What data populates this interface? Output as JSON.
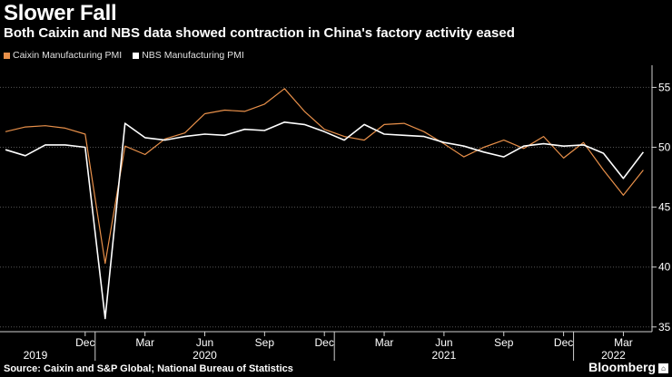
{
  "header": {
    "title": "Slower Fall",
    "subtitle": "Both Caixin and NBS data showed contraction in China's factory activity eased"
  },
  "footer": {
    "source": "Source: Caixin and S&P Global; National Bureau of Statistics",
    "brand": "Bloomberg"
  },
  "colors": {
    "background": "#000000",
    "caixin": "#e8904a",
    "nbs": "#ffffff",
    "grid": "#555555",
    "axis": "#d0d0d0"
  },
  "chart_data": {
    "type": "line",
    "title": "Slower Fall",
    "subtitle": "Both Caixin and NBS data showed contraction in China's factory activity eased",
    "xlabel": "",
    "ylabel": "",
    "ylim": [
      34,
      57
    ],
    "yticks": [
      35,
      40,
      45,
      50,
      55
    ],
    "grid": true,
    "legend_placement": "top-left",
    "x": [
      "2019-08",
      "2019-09",
      "2019-10",
      "2019-11",
      "2019-12",
      "2020-01",
      "2020-02",
      "2020-03",
      "2020-04",
      "2020-05",
      "2020-06",
      "2020-07",
      "2020-08",
      "2020-09",
      "2020-10",
      "2020-11",
      "2020-12",
      "2021-01",
      "2021-02",
      "2021-03",
      "2021-04",
      "2021-05",
      "2021-06",
      "2021-07",
      "2021-08",
      "2021-09",
      "2021-10",
      "2021-11",
      "2021-12",
      "2022-01",
      "2022-02",
      "2022-03",
      "2022-04",
      "2022-05"
    ],
    "x_tick_labels": [
      {
        "month": "Dec",
        "year": "2019"
      },
      {
        "month": "Mar",
        "year": ""
      },
      {
        "month": "Jun",
        "year": "2020"
      },
      {
        "month": "Sep",
        "year": ""
      },
      {
        "month": "Dec",
        "year": ""
      },
      {
        "month": "Mar",
        "year": ""
      },
      {
        "month": "Jun",
        "year": "2021"
      },
      {
        "month": "Sep",
        "year": ""
      },
      {
        "month": "Dec",
        "year": ""
      },
      {
        "month": "Mar",
        "year": "2022"
      }
    ],
    "x_tick_indices": [
      4,
      7,
      10,
      13,
      16,
      19,
      22,
      25,
      28,
      31
    ],
    "year_label_indices": [
      1.5,
      10.0,
      22.0,
      30.5
    ],
    "series": [
      {
        "name": "Caixin Manufacturing PMI",
        "color": "#e8904a",
        "values": [
          51.3,
          51.7,
          51.8,
          51.6,
          51.1,
          40.3,
          50.1,
          49.4,
          50.7,
          51.2,
          52.8,
          53.1,
          53.0,
          53.6,
          54.9,
          53.0,
          51.5,
          50.9,
          50.6,
          51.9,
          52.0,
          51.3,
          50.3,
          49.2,
          50.0,
          50.6,
          49.9,
          50.9,
          49.1,
          50.4,
          48.1,
          46.0,
          48.1,
          null
        ]
      },
      {
        "name": "NBS Manufacturing PMI",
        "color": "#ffffff",
        "values": [
          49.8,
          49.3,
          50.2,
          50.2,
          50.0,
          35.7,
          52.0,
          50.8,
          50.6,
          50.9,
          51.1,
          51.0,
          51.5,
          51.4,
          52.1,
          51.9,
          51.3,
          50.6,
          51.9,
          51.1,
          51.0,
          50.9,
          50.4,
          50.1,
          49.6,
          49.2,
          50.1,
          50.3,
          50.1,
          50.2,
          49.5,
          47.4,
          49.6,
          null
        ]
      }
    ]
  }
}
